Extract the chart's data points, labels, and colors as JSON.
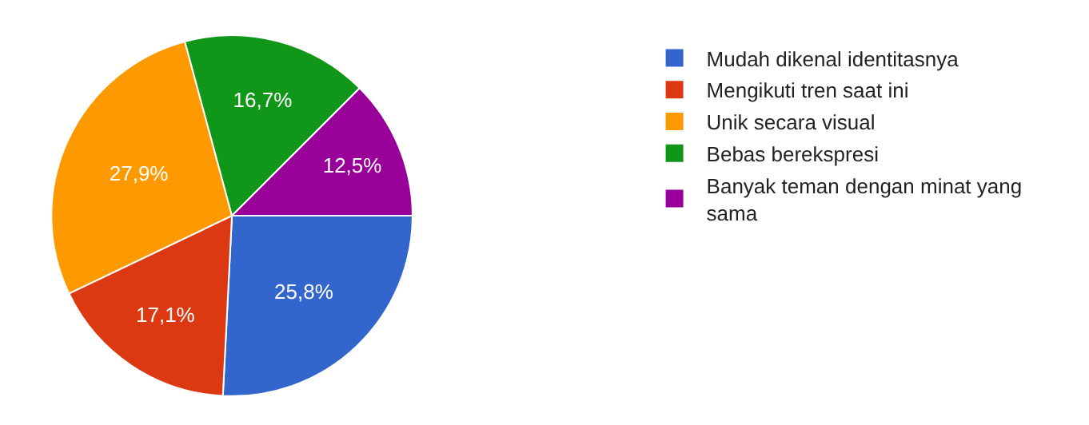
{
  "chart_data": {
    "type": "pie",
    "categories": [
      "Mudah dikenal identitasnya",
      "Mengikuti tren saat ini",
      "Unik secara visual",
      "Bebas berekspresi",
      "Banyak teman dengan minat yang sama"
    ],
    "values": [
      25.8,
      17.1,
      27.9,
      16.7,
      12.5
    ],
    "value_labels": [
      "25,8%",
      "17,1%",
      "27,9%",
      "16,7%",
      "12,5%"
    ],
    "colors": [
      "#3366cc",
      "#dc3912",
      "#ff9900",
      "#109618",
      "#990099"
    ],
    "legend": "right"
  }
}
